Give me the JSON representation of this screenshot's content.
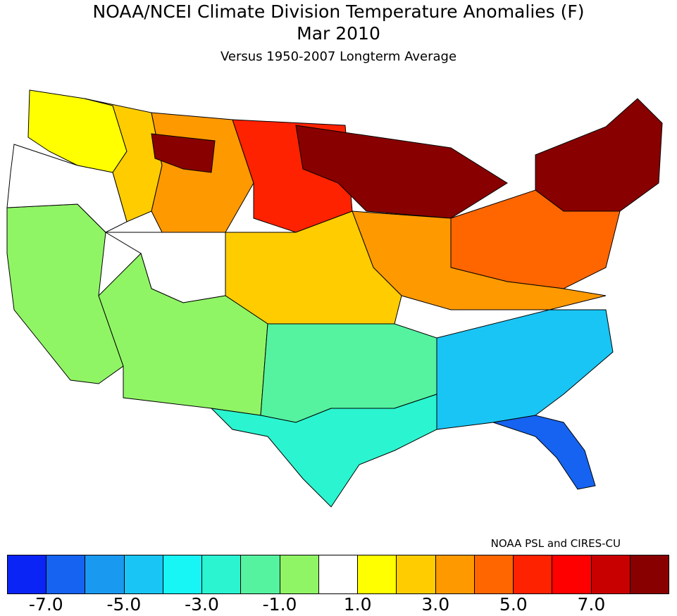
{
  "title": "NOAA/NCEI Climate Division Temperature Anomalies (F)",
  "period": "Mar 2010",
  "subtitle": "Versus 1950-2007 Longterm Average",
  "credit": "NOAA PSL and CIRES-CU",
  "legend": {
    "colors": [
      "#0a24f5",
      "#1563f0",
      "#1a99f0",
      "#19c5f5",
      "#18f5f5",
      "#2af5d0",
      "#55f2a0",
      "#90f565",
      "#ffffff",
      "#ffff00",
      "#ffcc00",
      "#ff9900",
      "#ff6600",
      "#ff2200",
      "#ff0000",
      "#c80000",
      "#880000"
    ],
    "tick_labels": [
      "-7.0",
      "-5.0",
      "-3.0",
      "-1.0",
      "1.0",
      "3.0",
      "5.0",
      "7.0"
    ]
  },
  "regions": [
    {
      "name": "pacific-northwest-coast",
      "color": "#ffff00"
    },
    {
      "name": "inland-northwest",
      "color": "#ffcc00"
    },
    {
      "name": "northern-rockies",
      "color": "#ff9900"
    },
    {
      "name": "montana-hot-spot",
      "color": "#880000"
    },
    {
      "name": "northern-plains",
      "color": "#ff2200"
    },
    {
      "name": "upper-midwest",
      "color": "#880000"
    },
    {
      "name": "northeast",
      "color": "#880000"
    },
    {
      "name": "mid-atlantic",
      "color": "#ff6600"
    },
    {
      "name": "ohio-valley",
      "color": "#ff9900"
    },
    {
      "name": "central-plains",
      "color": "#ffcc00"
    },
    {
      "name": "california",
      "color": "#90f565"
    },
    {
      "name": "southwest",
      "color": "#90f565"
    },
    {
      "name": "southern-plains",
      "color": "#55f2a0"
    },
    {
      "name": "gulf-coast",
      "color": "#2af5d0"
    },
    {
      "name": "southeast",
      "color": "#19c5f5"
    },
    {
      "name": "florida",
      "color": "#1563f0"
    },
    {
      "name": "great-basin",
      "color": "#ffffff"
    },
    {
      "name": "four-corners",
      "color": "#ffffff"
    }
  ]
}
